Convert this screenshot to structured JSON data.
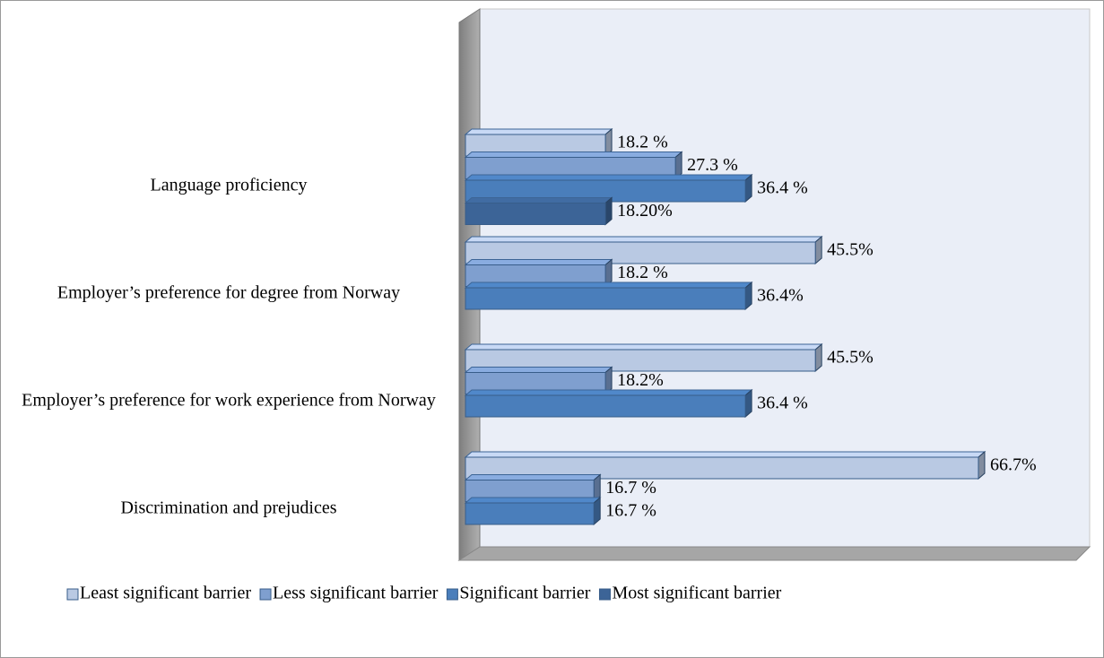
{
  "chart_data": {
    "type": "bar",
    "categories": [
      "Language proficiency",
      "Employer’s preference for degree from Norway",
      "Employer’s preference for work experience from Norway",
      "Discrimination and prejudices"
    ],
    "series": [
      {
        "name": "Least significant barrier",
        "color": "#b9c9e3",
        "values": [
          18.2,
          45.5,
          45.5,
          66.7
        ],
        "value_labels": [
          "18.2 %",
          "45.5%",
          "45.5%",
          "66.7%"
        ]
      },
      {
        "name": "Less significant barrier",
        "color": "#7f9fcf",
        "values": [
          27.3,
          18.2,
          18.2,
          16.7
        ],
        "value_labels": [
          "27.3 %",
          "18.2 %",
          "18.2%",
          "16.7 %"
        ]
      },
      {
        "name": "Significant barrier",
        "color": "#4a7ebb",
        "values": [
          36.4,
          36.4,
          36.4,
          16.7
        ],
        "value_labels": [
          "36.4 %",
          "36.4%",
          "36.4 %",
          "16.7 %"
        ]
      },
      {
        "name": "Most significant barrier",
        "color": "#3c6497",
        "values": [
          18.2,
          null,
          null,
          null
        ],
        "value_labels": [
          "18.20%",
          null,
          null,
          null
        ]
      }
    ],
    "xlim": [
      0,
      80
    ],
    "legend": "bottom"
  }
}
